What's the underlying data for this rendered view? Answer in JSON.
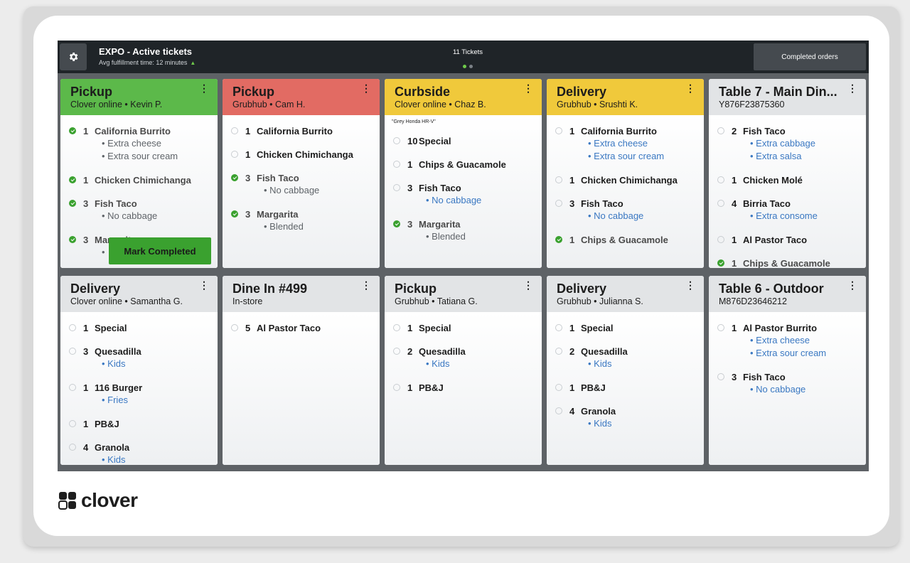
{
  "header": {
    "title": "EXPO - Active tickets",
    "subtitle": "Avg fulfillment time: 12 minutes",
    "tickets_count": "11 Tickets",
    "completed_orders_label": "Completed orders"
  },
  "mark_completed_label": "Mark Completed",
  "brand": {
    "logo_text": "clover"
  },
  "colors": {
    "green": "#5cb94a",
    "red": "#e26b63",
    "yellow": "#f0c93b",
    "grey": "#e2e4e6",
    "done_check": "#3aa12f",
    "modifier_blue": "#3a78c2"
  },
  "tickets": [
    {
      "title": "Pickup",
      "subtitle": "Clover online • Kevin P.",
      "color": "#5cb94a",
      "items": [
        {
          "qty": "1",
          "name": "California Burrito",
          "done": true,
          "mods": [
            "• Extra cheese",
            "• Extra sour cream"
          ],
          "mod_style": "grey"
        },
        {
          "qty": "1",
          "name": "Chicken Chimichanga",
          "done": true,
          "mods": []
        },
        {
          "qty": "3",
          "name": "Fish Taco",
          "done": true,
          "mods": [
            "• No cabbage"
          ],
          "mod_style": "grey"
        },
        {
          "qty": "3",
          "name": "Margarita",
          "done": true,
          "mods": [
            "•"
          ],
          "mod_style": "grey"
        }
      ]
    },
    {
      "title": "Pickup",
      "subtitle": "Grubhub • Cam H.",
      "color": "#e26b63",
      "items": [
        {
          "qty": "1",
          "name": "California Burrito",
          "done": false,
          "mods": []
        },
        {
          "qty": "1",
          "name": "Chicken Chimichanga",
          "done": false,
          "mods": []
        },
        {
          "qty": "3",
          "name": "Fish Taco",
          "done": true,
          "mods": [
            "• No cabbage"
          ],
          "mod_style": "grey"
        },
        {
          "qty": "3",
          "name": "Margarita",
          "done": true,
          "mods": [
            "• Blended"
          ],
          "mod_style": "grey"
        }
      ]
    },
    {
      "title": "Curbside",
      "subtitle": "Clover online • Chaz B.",
      "color": "#f0c93b",
      "note": "\"Grey Honda HR-V\"",
      "items": [
        {
          "qty": "10",
          "name": "Special",
          "done": false,
          "mods": []
        },
        {
          "qty": "1",
          "name": "Chips & Guacamole",
          "done": false,
          "mods": []
        },
        {
          "qty": "3",
          "name": "Fish Taco",
          "done": false,
          "mods": [
            "• No cabbage"
          ],
          "mod_style": "blue"
        },
        {
          "qty": "3",
          "name": "Margarita",
          "done": true,
          "mods": [
            "• Blended"
          ],
          "mod_style": "grey"
        }
      ]
    },
    {
      "title": "Delivery",
      "subtitle": "Grubhub • Srushti K.",
      "color": "#f0c93b",
      "items": [
        {
          "qty": "1",
          "name": "California Burrito",
          "done": false,
          "mods": [
            "• Extra cheese",
            "• Extra sour cream"
          ],
          "mod_style": "blue"
        },
        {
          "qty": "1",
          "name": "Chicken Chimichanga",
          "done": false,
          "mods": []
        },
        {
          "qty": "3",
          "name": "Fish Taco",
          "done": false,
          "mods": [
            "• No cabbage"
          ],
          "mod_style": "blue"
        },
        {
          "qty": "1",
          "name": "Chips & Guacamole",
          "done": true,
          "mods": []
        }
      ]
    },
    {
      "title": "Table 7 - Main Din...",
      "subtitle": "Y876F23875360",
      "color": "#e2e4e6",
      "items": [
        {
          "qty": "2",
          "name": "Fish Taco",
          "done": false,
          "mods": [
            "• Extra cabbage",
            "• Extra salsa"
          ],
          "mod_style": "blue"
        },
        {
          "qty": "1",
          "name": "Chicken Molé",
          "done": false,
          "mods": []
        },
        {
          "qty": "4",
          "name": "Birria Taco",
          "done": false,
          "mods": [
            "• Extra consome"
          ],
          "mod_style": "blue"
        },
        {
          "qty": "1",
          "name": "Al Pastor Taco",
          "done": false,
          "mods": []
        },
        {
          "qty": "1",
          "name": "Chips & Guacamole",
          "done": true,
          "mods": []
        }
      ]
    },
    {
      "title": "Delivery",
      "subtitle": "Clover online • Samantha G.",
      "color": "#e2e4e6",
      "items": [
        {
          "qty": "1",
          "name": "Special",
          "done": false,
          "mods": []
        },
        {
          "qty": "3",
          "name": "Quesadilla",
          "done": false,
          "mods": [
            "• Kids"
          ],
          "mod_style": "blue"
        },
        {
          "qty": "1",
          "name": "116 Burger",
          "done": false,
          "mods": [
            "• Fries"
          ],
          "mod_style": "blue"
        },
        {
          "qty": "1",
          "name": "PB&J",
          "done": false,
          "mods": []
        },
        {
          "qty": "4",
          "name": "Granola",
          "done": false,
          "mods": [
            "• Kids"
          ],
          "mod_style": "blue"
        }
      ]
    },
    {
      "title": "Dine In #499",
      "subtitle": "In-store",
      "color": "#e2e4e6",
      "items": [
        {
          "qty": "5",
          "name": "Al Pastor Taco",
          "done": false,
          "mods": []
        }
      ]
    },
    {
      "title": "Pickup",
      "subtitle": "Grubhub • Tatiana G.",
      "color": "#e2e4e6",
      "items": [
        {
          "qty": "1",
          "name": "Special",
          "done": false,
          "mods": []
        },
        {
          "qty": "2",
          "name": "Quesadilla",
          "done": false,
          "mods": [
            "• Kids"
          ],
          "mod_style": "blue"
        },
        {
          "qty": "1",
          "name": "PB&J",
          "done": false,
          "mods": []
        }
      ]
    },
    {
      "title": "Delivery",
      "subtitle": "Grubhub • Julianna S.",
      "color": "#e2e4e6",
      "items": [
        {
          "qty": "1",
          "name": "Special",
          "done": false,
          "mods": []
        },
        {
          "qty": "2",
          "name": "Quesadilla",
          "done": false,
          "mods": [
            "• Kids"
          ],
          "mod_style": "blue"
        },
        {
          "qty": "1",
          "name": "PB&J",
          "done": false,
          "mods": []
        },
        {
          "qty": "4",
          "name": "Granola",
          "done": false,
          "mods": [
            "• Kids"
          ],
          "mod_style": "blue"
        }
      ]
    },
    {
      "title": "Table 6 - Outdoor",
      "subtitle": "M876D23646212",
      "color": "#e2e4e6",
      "items": [
        {
          "qty": "1",
          "name": "Al Pastor Burrito",
          "done": false,
          "mods": [
            "• Extra cheese",
            "• Extra sour cream"
          ],
          "mod_style": "blue"
        },
        {
          "qty": "3",
          "name": "Fish Taco",
          "done": false,
          "mods": [
            "• No cabbage"
          ],
          "mod_style": "blue"
        }
      ]
    }
  ]
}
